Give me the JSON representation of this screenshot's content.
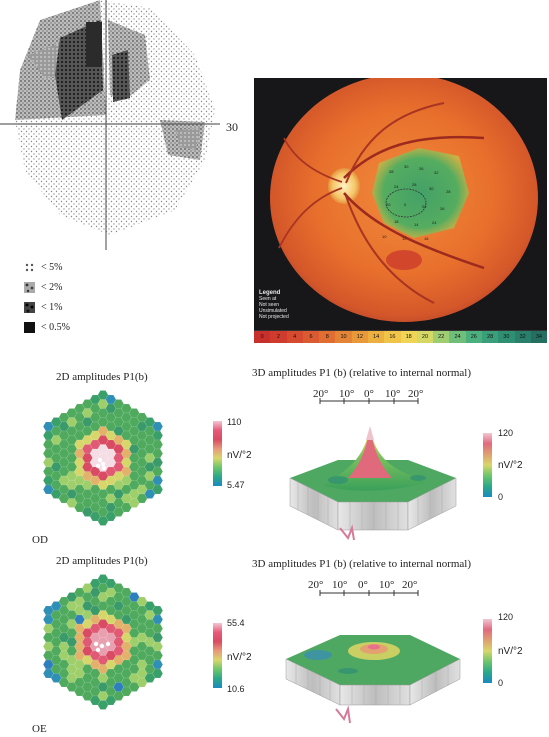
{
  "visual_field": {
    "axis_label": "30",
    "legend": [
      {
        "symbol": "dots-light",
        "label": "< 5%"
      },
      {
        "symbol": "dots-medium",
        "label": "< 2%"
      },
      {
        "symbol": "dots-dark",
        "label": "< 1%"
      },
      {
        "symbol": "solid-black",
        "label": "< 0.5%"
      }
    ]
  },
  "fundus": {
    "legend_title": "Legend",
    "legend_lines": [
      "Seen at",
      "Not seen",
      "Unsimulated",
      "Not projected"
    ],
    "scale": [
      "0",
      "2",
      "4",
      "6",
      "8",
      "10",
      "12",
      "14",
      "16",
      "18",
      "20",
      "22",
      "24",
      "26",
      "28",
      "30",
      "32",
      "34"
    ],
    "scale_colors": [
      "#c8302c",
      "#cf3c2e",
      "#d64a30",
      "#dc5a31",
      "#e06e33",
      "#e48436",
      "#e89a3a",
      "#ecb040",
      "#f0c448",
      "#efd456",
      "#d6d865",
      "#9fcd72",
      "#6fbf7b",
      "#4bb07e",
      "#3a9f7a",
      "#2f8f73",
      "#2a7f6b",
      "#246f62"
    ]
  },
  "od": {
    "title_2d": "2D amplitudes P1(b)",
    "title_3d": "3D amplitudes P1 (b) (relative to internal normal)",
    "eye_label": "OD",
    "cbar_max": "110",
    "cbar_min": "5.47",
    "unit": "nV/°2",
    "cbar3d_max": "120",
    "cbar3d_min": "0",
    "angle_ticks": [
      "20°",
      "10°",
      "0°",
      "10°",
      "20°"
    ]
  },
  "oe": {
    "title_2d": "2D amplitudes P1(b)",
    "title_3d": "3D amplitudes P1 (b) (relative to internal normal)",
    "eye_label": "OE",
    "cbar_max": "55.4",
    "cbar_min": "10.6",
    "unit": "nV/°2",
    "cbar3d_max": "120",
    "cbar3d_min": "0",
    "angle_ticks": [
      "20°",
      "10°",
      "0°",
      "10°",
      "20°"
    ]
  }
}
